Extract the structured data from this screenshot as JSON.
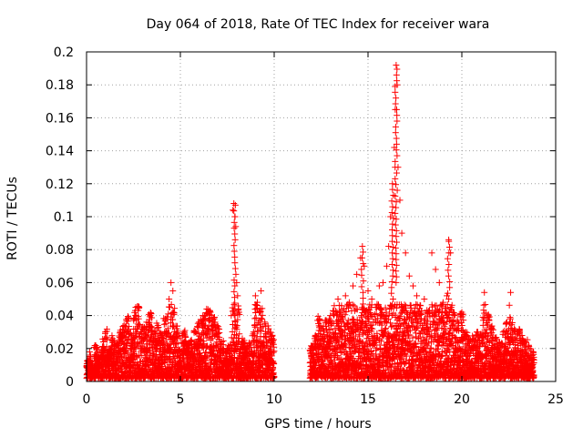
{
  "chart_data": {
    "type": "scatter",
    "title": "Day 064 of 2018, Rate Of TEC Index for receiver wara",
    "xlabel": "GPS time / hours",
    "ylabel": "ROTI / TECUs",
    "xlim": [
      0,
      25
    ],
    "ylim": [
      0,
      0.2
    ],
    "x_ticks": [
      0,
      5,
      10,
      15,
      20,
      25
    ],
    "x_tick_labels": [
      "0",
      "5",
      "10",
      "15",
      "20",
      "25"
    ],
    "y_ticks": [
      0,
      0.02,
      0.04,
      0.06,
      0.08,
      0.1,
      0.12,
      0.14,
      0.16,
      0.18,
      0.2
    ],
    "y_tick_labels": [
      "0",
      "0.02",
      "0.04",
      "0.06",
      "0.08",
      "0.1",
      "0.12",
      "0.14",
      "0.16",
      "0.18",
      "0.2"
    ],
    "grid": true,
    "marker": "+",
    "series": [
      {
        "name": "ROTI",
        "color": "#ff0000",
        "data_gap": [
          10.0,
          11.9
        ],
        "points": [
          [
            0.1,
            0.012
          ],
          [
            0.2,
            0.016
          ],
          [
            0.3,
            0.008
          ],
          [
            0.5,
            0.02
          ],
          [
            0.7,
            0.014
          ],
          [
            0.9,
            0.024
          ],
          [
            1.0,
            0.03
          ],
          [
            1.2,
            0.018
          ],
          [
            1.4,
            0.026
          ],
          [
            1.6,
            0.022
          ],
          [
            1.8,
            0.03
          ],
          [
            2.0,
            0.034
          ],
          [
            2.2,
            0.038
          ],
          [
            2.4,
            0.028
          ],
          [
            2.6,
            0.043
          ],
          [
            2.8,
            0.045
          ],
          [
            3.0,
            0.032
          ],
          [
            3.2,
            0.036
          ],
          [
            3.4,
            0.04
          ],
          [
            3.6,
            0.03
          ],
          [
            3.8,
            0.034
          ],
          [
            4.0,
            0.028
          ],
          [
            4.2,
            0.038
          ],
          [
            4.4,
            0.05
          ],
          [
            4.5,
            0.06
          ],
          [
            4.6,
            0.055
          ],
          [
            4.8,
            0.032
          ],
          [
            5.0,
            0.026
          ],
          [
            5.2,
            0.03
          ],
          [
            5.4,
            0.022
          ],
          [
            5.6,
            0.024
          ],
          [
            5.8,
            0.03
          ],
          [
            6.0,
            0.036
          ],
          [
            6.2,
            0.04
          ],
          [
            6.4,
            0.044
          ],
          [
            6.6,
            0.042
          ],
          [
            6.8,
            0.038
          ],
          [
            7.0,
            0.032
          ],
          [
            7.2,
            0.024
          ],
          [
            7.4,
            0.018
          ],
          [
            7.6,
            0.02
          ],
          [
            7.8,
            0.104
          ],
          [
            7.85,
            0.108
          ],
          [
            7.9,
            0.1
          ],
          [
            7.95,
            0.094
          ],
          [
            8.0,
            0.06
          ],
          [
            8.05,
            0.052
          ],
          [
            8.1,
            0.044
          ],
          [
            8.3,
            0.026
          ],
          [
            8.5,
            0.02
          ],
          [
            8.7,
            0.022
          ],
          [
            8.9,
            0.03
          ],
          [
            9.0,
            0.052
          ],
          [
            9.1,
            0.048
          ],
          [
            9.2,
            0.042
          ],
          [
            9.3,
            0.055
          ],
          [
            9.5,
            0.036
          ],
          [
            9.7,
            0.032
          ],
          [
            9.9,
            0.028
          ],
          [
            12.0,
            0.02
          ],
          [
            12.2,
            0.028
          ],
          [
            12.4,
            0.038
          ],
          [
            12.6,
            0.032
          ],
          [
            12.8,
            0.036
          ],
          [
            13.0,
            0.04
          ],
          [
            13.2,
            0.046
          ],
          [
            13.4,
            0.05
          ],
          [
            13.6,
            0.044
          ],
          [
            13.8,
            0.052
          ],
          [
            14.0,
            0.048
          ],
          [
            14.2,
            0.058
          ],
          [
            14.4,
            0.065
          ],
          [
            14.6,
            0.075
          ],
          [
            14.7,
            0.082
          ],
          [
            14.8,
            0.07
          ],
          [
            15.0,
            0.055
          ],
          [
            15.2,
            0.05
          ],
          [
            15.4,
            0.045
          ],
          [
            15.6,
            0.058
          ],
          [
            15.8,
            0.06
          ],
          [
            16.0,
            0.07
          ],
          [
            16.1,
            0.082
          ],
          [
            16.2,
            0.1
          ],
          [
            16.3,
            0.12
          ],
          [
            16.4,
            0.142
          ],
          [
            16.45,
            0.165
          ],
          [
            16.5,
            0.192
          ],
          [
            16.55,
            0.18
          ],
          [
            16.6,
            0.13
          ],
          [
            16.7,
            0.11
          ],
          [
            16.8,
            0.09
          ],
          [
            17.0,
            0.078
          ],
          [
            17.2,
            0.064
          ],
          [
            17.4,
            0.058
          ],
          [
            17.6,
            0.052
          ],
          [
            17.8,
            0.046
          ],
          [
            18.0,
            0.05
          ],
          [
            18.2,
            0.042
          ],
          [
            18.4,
            0.078
          ],
          [
            18.6,
            0.068
          ],
          [
            18.8,
            0.06
          ],
          [
            19.0,
            0.048
          ],
          [
            19.2,
            0.052
          ],
          [
            19.3,
            0.086
          ],
          [
            19.4,
            0.078
          ],
          [
            19.6,
            0.04
          ],
          [
            19.8,
            0.036
          ],
          [
            20.0,
            0.042
          ],
          [
            20.2,
            0.03
          ],
          [
            20.4,
            0.024
          ],
          [
            20.6,
            0.026
          ],
          [
            20.8,
            0.03
          ],
          [
            21.0,
            0.028
          ],
          [
            21.2,
            0.054
          ],
          [
            21.4,
            0.04
          ],
          [
            21.6,
            0.032
          ],
          [
            21.8,
            0.026
          ],
          [
            22.0,
            0.024
          ],
          [
            22.2,
            0.03
          ],
          [
            22.4,
            0.036
          ],
          [
            22.6,
            0.054
          ],
          [
            22.8,
            0.032
          ],
          [
            23.0,
            0.03
          ],
          [
            23.2,
            0.026
          ],
          [
            23.4,
            0.024
          ],
          [
            23.6,
            0.02
          ],
          [
            23.8,
            0.018
          ]
        ]
      }
    ]
  }
}
